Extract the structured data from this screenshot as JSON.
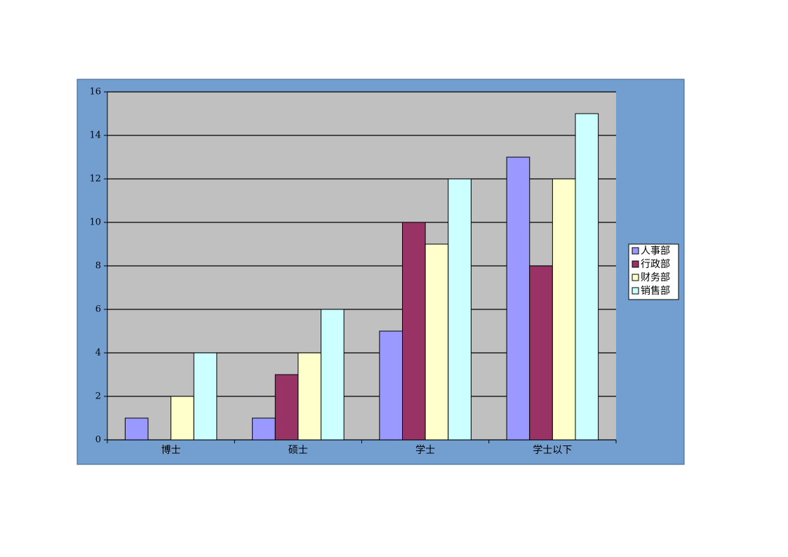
{
  "chart_data": {
    "type": "bar",
    "categories": [
      "博士",
      "硕士",
      "学士",
      "学士以下"
    ],
    "series": [
      {
        "name": "人事部",
        "color": "#9999ff",
        "values": [
          1,
          1,
          5,
          13
        ]
      },
      {
        "name": "行政部",
        "color": "#993366",
        "values": [
          0,
          3,
          10,
          8
        ]
      },
      {
        "name": "财务部",
        "color": "#ffffcc",
        "values": [
          2,
          4,
          9,
          12
        ]
      },
      {
        "name": "销售部",
        "color": "#ccffff",
        "values": [
          4,
          6,
          12,
          15
        ]
      }
    ],
    "ylim": [
      0,
      16
    ],
    "yticks": [
      0,
      2,
      4,
      6,
      8,
      10,
      12,
      14,
      16
    ],
    "grid": true,
    "legend": "right"
  }
}
